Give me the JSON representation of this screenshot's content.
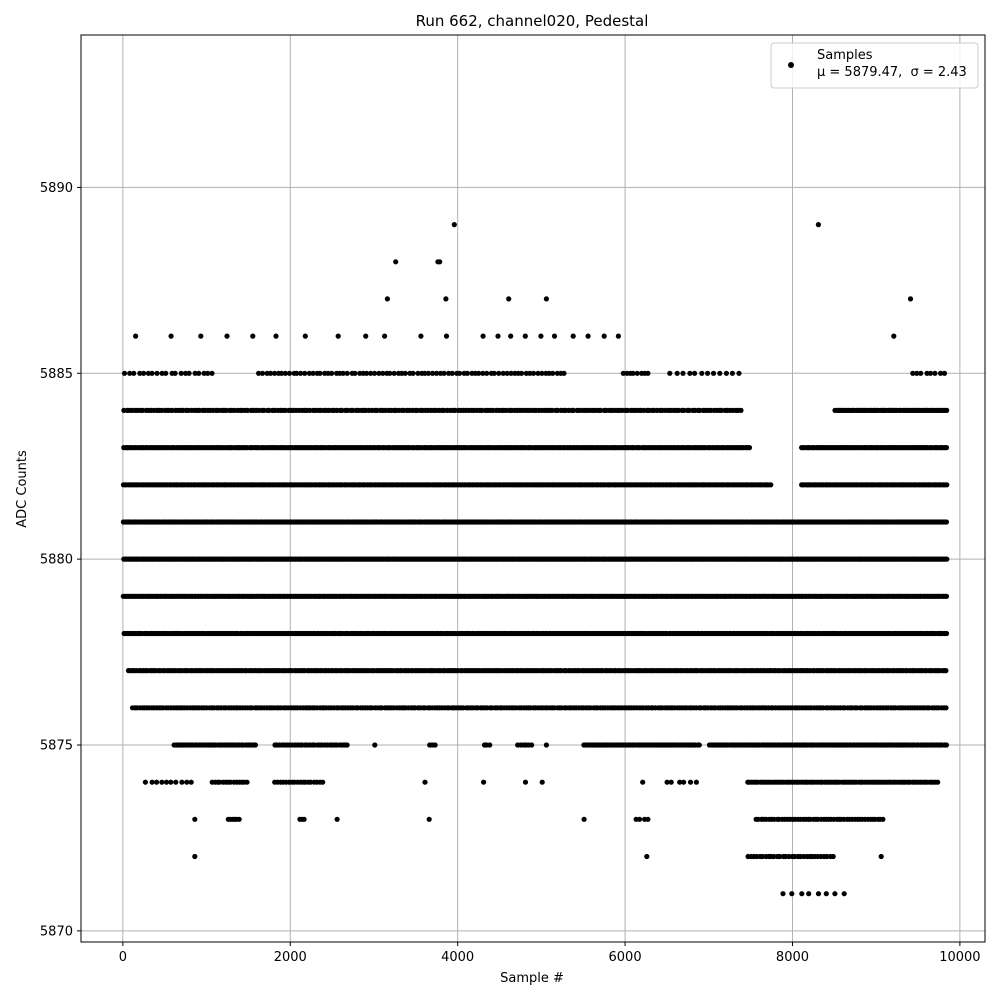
{
  "chart_data": {
    "type": "scatter",
    "title": "Run 662, channel020, Pedestal",
    "xlabel": "Sample #",
    "ylabel": "ADC Counts",
    "xlim": [
      -500,
      10300
    ],
    "ylim": [
      5869.7,
      5894.1
    ],
    "xticks": [
      0,
      2000,
      4000,
      6000,
      8000,
      10000
    ],
    "yticks": [
      5870,
      5875,
      5880,
      5885,
      5890
    ],
    "grid": true,
    "legend_position": "top-right",
    "legend": {
      "label": "Samples",
      "stats_mu": "μ = 5879.47,",
      "stats_sigma": "σ = 2.43"
    },
    "marker_color": "#000000",
    "series": [
      {
        "name": "Samples",
        "x_range": [
          0,
          9850
        ],
        "band_density": {
          "5871": [
            [
              7850,
              8650,
              8
            ]
          ],
          "5872": [
            [
              850,
              870,
              1
            ],
            [
              6250,
              6270,
              1
            ],
            [
              7450,
              8500,
              30
            ],
            [
              9050,
              9070,
              1
            ]
          ],
          "5873": [
            [
              850,
              870,
              1
            ],
            [
              1250,
              1400,
              6
            ],
            [
              2100,
              2180,
              3
            ],
            [
              2550,
              2570,
              1
            ],
            [
              3650,
              3670,
              1
            ],
            [
              5500,
              5520,
              1
            ],
            [
              6100,
              6300,
              4
            ],
            [
              7550,
              9100,
              50
            ]
          ],
          "5874": [
            [
              250,
              850,
              10
            ],
            [
              1050,
              1500,
              14
            ],
            [
              1800,
              2400,
              18
            ],
            [
              3600,
              3620,
              1
            ],
            [
              4300,
              4320,
              1
            ],
            [
              4800,
              4820,
              1
            ],
            [
              5000,
              5020,
              1
            ],
            [
              6200,
              6220,
              1
            ],
            [
              6450,
              6900,
              6
            ],
            [
              7450,
              9750,
              90
            ]
          ],
          "5875": [
            [
              600,
              1600,
              40
            ],
            [
              1800,
              2700,
              30
            ],
            [
              3000,
              3020,
              1
            ],
            [
              3650,
              3750,
              3
            ],
            [
              4300,
              4400,
              3
            ],
            [
              4700,
              4900,
              6
            ],
            [
              5050,
              5070,
              1
            ],
            [
              5500,
              6900,
              60
            ],
            [
              7000,
              9850,
              120
            ]
          ],
          "5876": [
            [
              100,
              9850,
              340
            ]
          ],
          "5877": [
            [
              50,
              9850,
              380
            ]
          ],
          "5878": [
            [
              0,
              9850,
              440
            ]
          ],
          "5879": [
            [
              0,
              9850,
              560
            ]
          ],
          "5880": [
            [
              0,
              9850,
              540
            ]
          ],
          "5881": [
            [
              0,
              9850,
              480
            ]
          ],
          "5882": [
            [
              0,
              7750,
              400
            ],
            [
              8100,
              9850,
              100
            ]
          ],
          "5883": [
            [
              0,
              7500,
              320
            ],
            [
              8100,
              9850,
              80
            ]
          ],
          "5884": [
            [
              0,
              7400,
              230
            ],
            [
              8500,
              9850,
              60
            ]
          ],
          "5885": [
            [
              0,
              1100,
              20
            ],
            [
              1600,
              5300,
              80
            ],
            [
              5950,
              6300,
              8
            ],
            [
              6500,
              7400,
              12
            ],
            [
              9400,
              9850,
              8
            ]
          ],
          "5886": [
            [
              50,
              4000,
              12
            ],
            [
              4200,
              6000,
              10
            ],
            [
              9200,
              9220,
              1
            ]
          ],
          "5887": [
            [
              3150,
              3170,
              1
            ],
            [
              3850,
              3870,
              1
            ],
            [
              4600,
              4620,
              1
            ],
            [
              5050,
              5070,
              1
            ],
            [
              9400,
              9420,
              1
            ]
          ],
          "5888": [
            [
              3250,
              3270,
              1
            ],
            [
              3750,
              3800,
              2
            ]
          ],
          "5889": [
            [
              3950,
              3970,
              1
            ],
            [
              8300,
              8320,
              1
            ]
          ]
        }
      }
    ]
  }
}
